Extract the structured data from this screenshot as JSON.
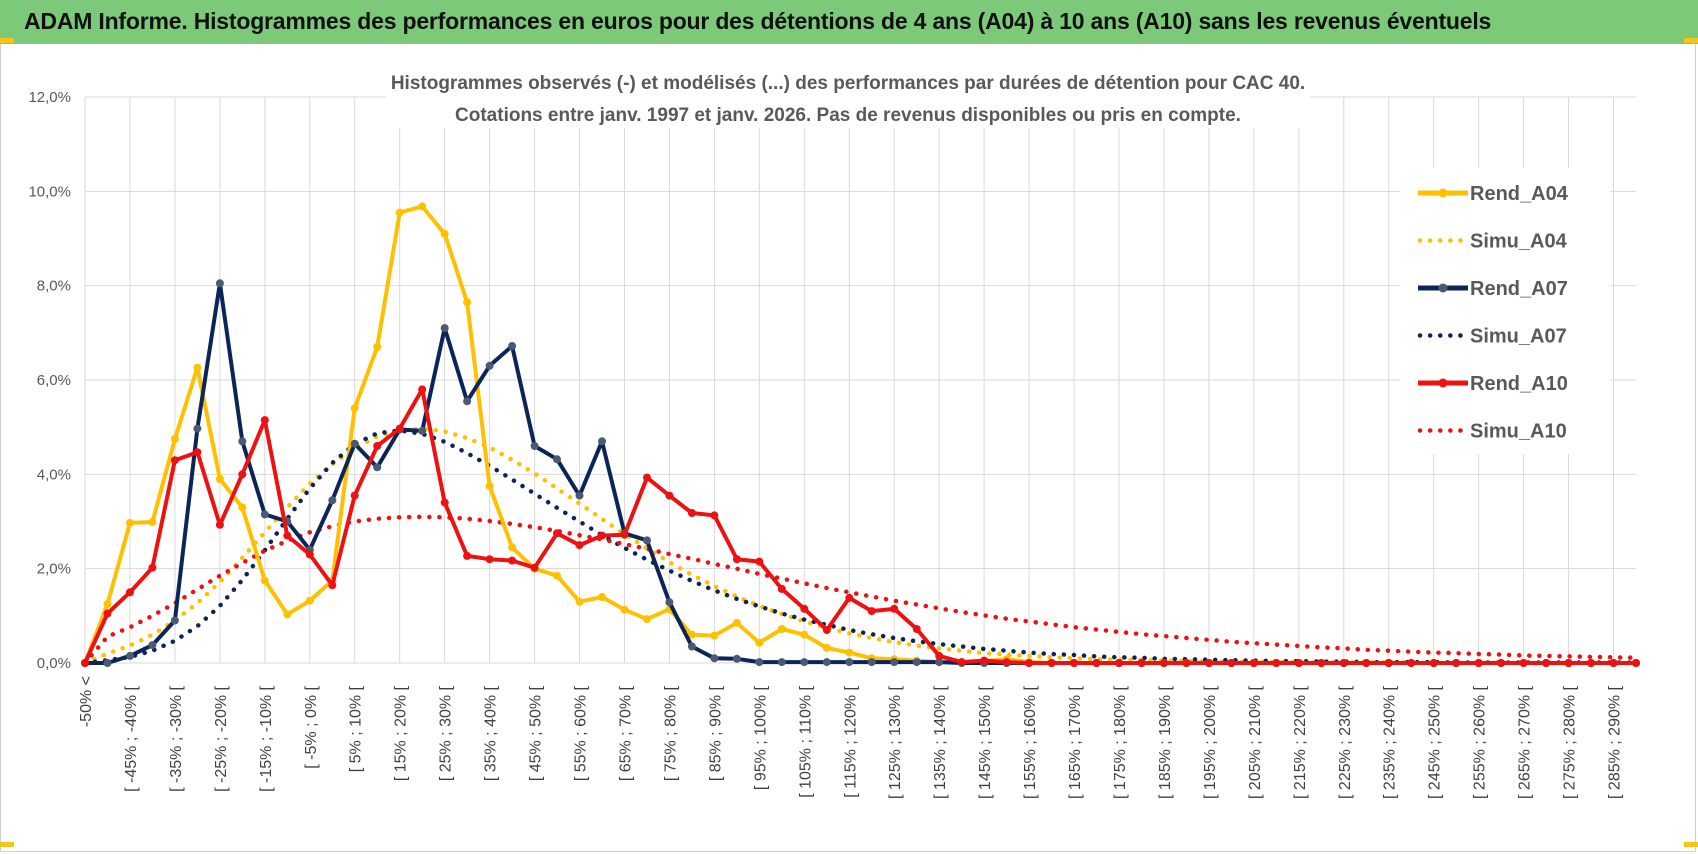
{
  "header": {
    "title": "ADAM Informe. Histogrammes des performances en euros pour des détentions de 4 ans (A04) à 10 ans (A10) sans les revenus éventuels"
  },
  "colors": {
    "header_bg": "#7dc97a",
    "accent": "#f5c518",
    "a04": "#ffc000",
    "a07": "#0b2559",
    "a07_marker": "#4a5a75",
    "a10": "#ee1111",
    "grid": "#d9d9d9"
  },
  "chart_data": {
    "type": "line",
    "title_line1": "Histogrammes observés (-) et modélisés (...) des performances par durées de détention pour CAC 40.",
    "title_line2": "Cotations entre janv. 1997 et janv. 2026. Pas de revenus disponibles ou pris en compte.",
    "xlabel": "",
    "ylabel": "",
    "ylim": [
      0,
      12
    ],
    "y_ticks": [
      "0,0%",
      "2,0%",
      "4,0%",
      "6,0%",
      "8,0%",
      "10,0%",
      "12,0%"
    ],
    "x_labels": [
      "-50% <",
      "[ -45% ; -40% [",
      "[ -35% ; -30% [",
      "[ -25% ; -20% [",
      "[ -15% ; -10% [",
      "[ -5% ; 0% [",
      "[ 5% ; 10% [",
      "[ 15% ; 20% [",
      "[ 25% ; 30% [",
      "[ 35% ; 40% [",
      "[ 45% ; 50% [",
      "[ 55% ; 60% [",
      "[ 65% ; 70% [",
      "[ 75% ; 80% [",
      "[ 85% ; 90% [",
      "[ 95% ; 100% [",
      "[ 105% ; 110% [",
      "[ 115% ; 120% [",
      "[ 125% ; 130% [",
      "[ 135% ; 140% [",
      "[ 145% ; 150% [",
      "[ 155% ; 160% [",
      "[ 165% ; 170% [",
      "[ 175% ; 180% [",
      "[ 185% ; 190% [",
      "[ 195% ; 200% [",
      "[ 205% ; 210% [",
      "[ 215% ; 220% [",
      "[ 225% ; 230% [",
      "[ 235% ; 240% [",
      "[ 245% ; 250% [",
      "[ 255% ; 260% [",
      "[ 265% ; 270% [",
      "[ 275% ; 280% [",
      "[ 285% ; 290% ["
    ],
    "legend_position": "right",
    "grid": true,
    "series": [
      {
        "name": "Rend_A04",
        "style": "solid",
        "color": "#ffc000",
        "values": [
          0,
          1.25,
          2.97,
          2.99,
          4.75,
          6.26,
          3.9,
          3.3,
          1.75,
          1.03,
          1.32,
          1.75,
          5.4,
          6.7,
          9.55,
          9.68,
          9.1,
          7.65,
          3.75,
          2.45,
          2.0,
          1.85,
          1.3,
          1.4,
          1.13,
          0.93,
          1.14,
          0.6,
          0.58,
          0.85,
          0.43,
          0.72,
          0.6,
          0.32,
          0.22,
          0.1,
          0.08,
          0.05,
          0.02,
          0.02,
          0.04,
          0.08,
          0.02,
          0,
          0,
          0,
          0,
          0,
          0,
          0,
          0,
          0,
          0,
          0,
          0,
          0,
          0,
          0,
          0,
          0,
          0,
          0,
          0,
          0,
          0,
          0,
          0,
          0,
          0,
          0
        ]
      },
      {
        "name": "Simu_A04",
        "style": "dotted",
        "color": "#ffc000",
        "values": [
          0,
          0.2,
          0.37,
          0.6,
          0.9,
          1.27,
          1.72,
          2.23,
          2.77,
          3.3,
          3.8,
          4.22,
          4.56,
          4.8,
          4.93,
          4.97,
          4.91,
          4.77,
          4.57,
          4.31,
          4.02,
          3.7,
          3.38,
          3.05,
          2.73,
          2.43,
          2.14,
          1.87,
          1.63,
          1.41,
          1.21,
          1.04,
          0.88,
          0.75,
          0.63,
          0.53,
          0.44,
          0.37,
          0.31,
          0.26,
          0.21,
          0.18,
          0.15,
          0.12,
          0.1,
          0.08,
          0.07,
          0.06,
          0.05,
          0.04,
          0.03,
          0.03,
          0.02,
          0.02,
          0.01,
          0.01,
          0.01,
          0.01,
          0.01,
          0.01,
          0,
          0,
          0,
          0,
          0,
          0,
          0,
          0,
          0,
          0
        ]
      },
      {
        "name": "Rend_A07",
        "style": "solid",
        "color": "#0b2559",
        "values": [
          0,
          0,
          0.15,
          0.38,
          0.9,
          4.97,
          8.05,
          4.7,
          3.15,
          3.0,
          2.4,
          3.45,
          4.65,
          4.15,
          4.95,
          4.92,
          7.1,
          5.55,
          6.3,
          6.72,
          4.6,
          4.32,
          3.55,
          4.7,
          2.75,
          2.6,
          1.29,
          0.35,
          0.1,
          0.09,
          0.02,
          0.02,
          0.02,
          0.02,
          0.02,
          0.02,
          0.02,
          0.02,
          0.02,
          0,
          0,
          0,
          0,
          0,
          0,
          0,
          0,
          0,
          0,
          0,
          0,
          0,
          0,
          0,
          0,
          0,
          0,
          0,
          0,
          0,
          0,
          0,
          0,
          0,
          0,
          0,
          0,
          0,
          0,
          0
        ]
      },
      {
        "name": "Simu_A07",
        "style": "dotted",
        "color": "#0b2559",
        "values": [
          0,
          0.06,
          0.13,
          0.26,
          0.47,
          0.78,
          1.21,
          1.76,
          2.39,
          3.06,
          3.7,
          4.24,
          4.64,
          4.87,
          4.93,
          4.86,
          4.69,
          4.45,
          4.18,
          3.89,
          3.59,
          3.29,
          3.0,
          2.71,
          2.44,
          2.19,
          1.96,
          1.74,
          1.54,
          1.36,
          1.2,
          1.05,
          0.92,
          0.81,
          0.7,
          0.61,
          0.53,
          0.46,
          0.4,
          0.35,
          0.3,
          0.26,
          0.22,
          0.19,
          0.17,
          0.14,
          0.12,
          0.11,
          0.09,
          0.08,
          0.07,
          0.06,
          0.05,
          0.04,
          0.04,
          0.03,
          0.03,
          0.02,
          0.02,
          0.02,
          0.02,
          0.01,
          0.01,
          0.01,
          0.01,
          0.01,
          0.01,
          0.01,
          0.01,
          0.01
        ]
      },
      {
        "name": "Rend_A10",
        "style": "solid",
        "color": "#ee1111",
        "values": [
          0,
          1.05,
          1.5,
          2.02,
          4.3,
          4.47,
          2.93,
          4.0,
          5.15,
          2.7,
          2.3,
          1.65,
          3.55,
          4.6,
          4.97,
          5.8,
          3.4,
          2.27,
          2.2,
          2.17,
          2.02,
          2.75,
          2.5,
          2.7,
          2.72,
          3.93,
          3.55,
          3.18,
          3.13,
          2.2,
          2.15,
          1.57,
          1.15,
          0.7,
          1.38,
          1.1,
          1.15,
          0.72,
          0.15,
          0.02,
          0.05,
          0.02,
          0,
          0,
          0,
          0,
          0,
          0,
          0,
          0,
          0,
          0,
          0,
          0,
          0,
          0,
          0,
          0,
          0,
          0,
          0,
          0,
          0,
          0,
          0,
          0,
          0,
          0,
          0,
          0
        ]
      },
      {
        "name": "Simu_A10",
        "style": "dotted",
        "color": "#ee1111",
        "values": [
          0,
          0.56,
          0.76,
          1.0,
          1.27,
          1.56,
          1.85,
          2.12,
          2.38,
          2.59,
          2.77,
          2.9,
          3.0,
          3.06,
          3.09,
          3.1,
          3.09,
          3.06,
          3.01,
          2.95,
          2.88,
          2.8,
          2.71,
          2.62,
          2.52,
          2.42,
          2.31,
          2.21,
          2.1,
          2.0,
          1.89,
          1.79,
          1.69,
          1.59,
          1.5,
          1.41,
          1.32,
          1.24,
          1.16,
          1.08,
          1.01,
          0.94,
          0.88,
          0.82,
          0.76,
          0.71,
          0.66,
          0.61,
          0.57,
          0.53,
          0.49,
          0.45,
          0.42,
          0.39,
          0.36,
          0.33,
          0.31,
          0.28,
          0.26,
          0.24,
          0.22,
          0.21,
          0.19,
          0.18,
          0.16,
          0.15,
          0.14,
          0.13,
          0.12,
          0.11
        ]
      }
    ]
  }
}
